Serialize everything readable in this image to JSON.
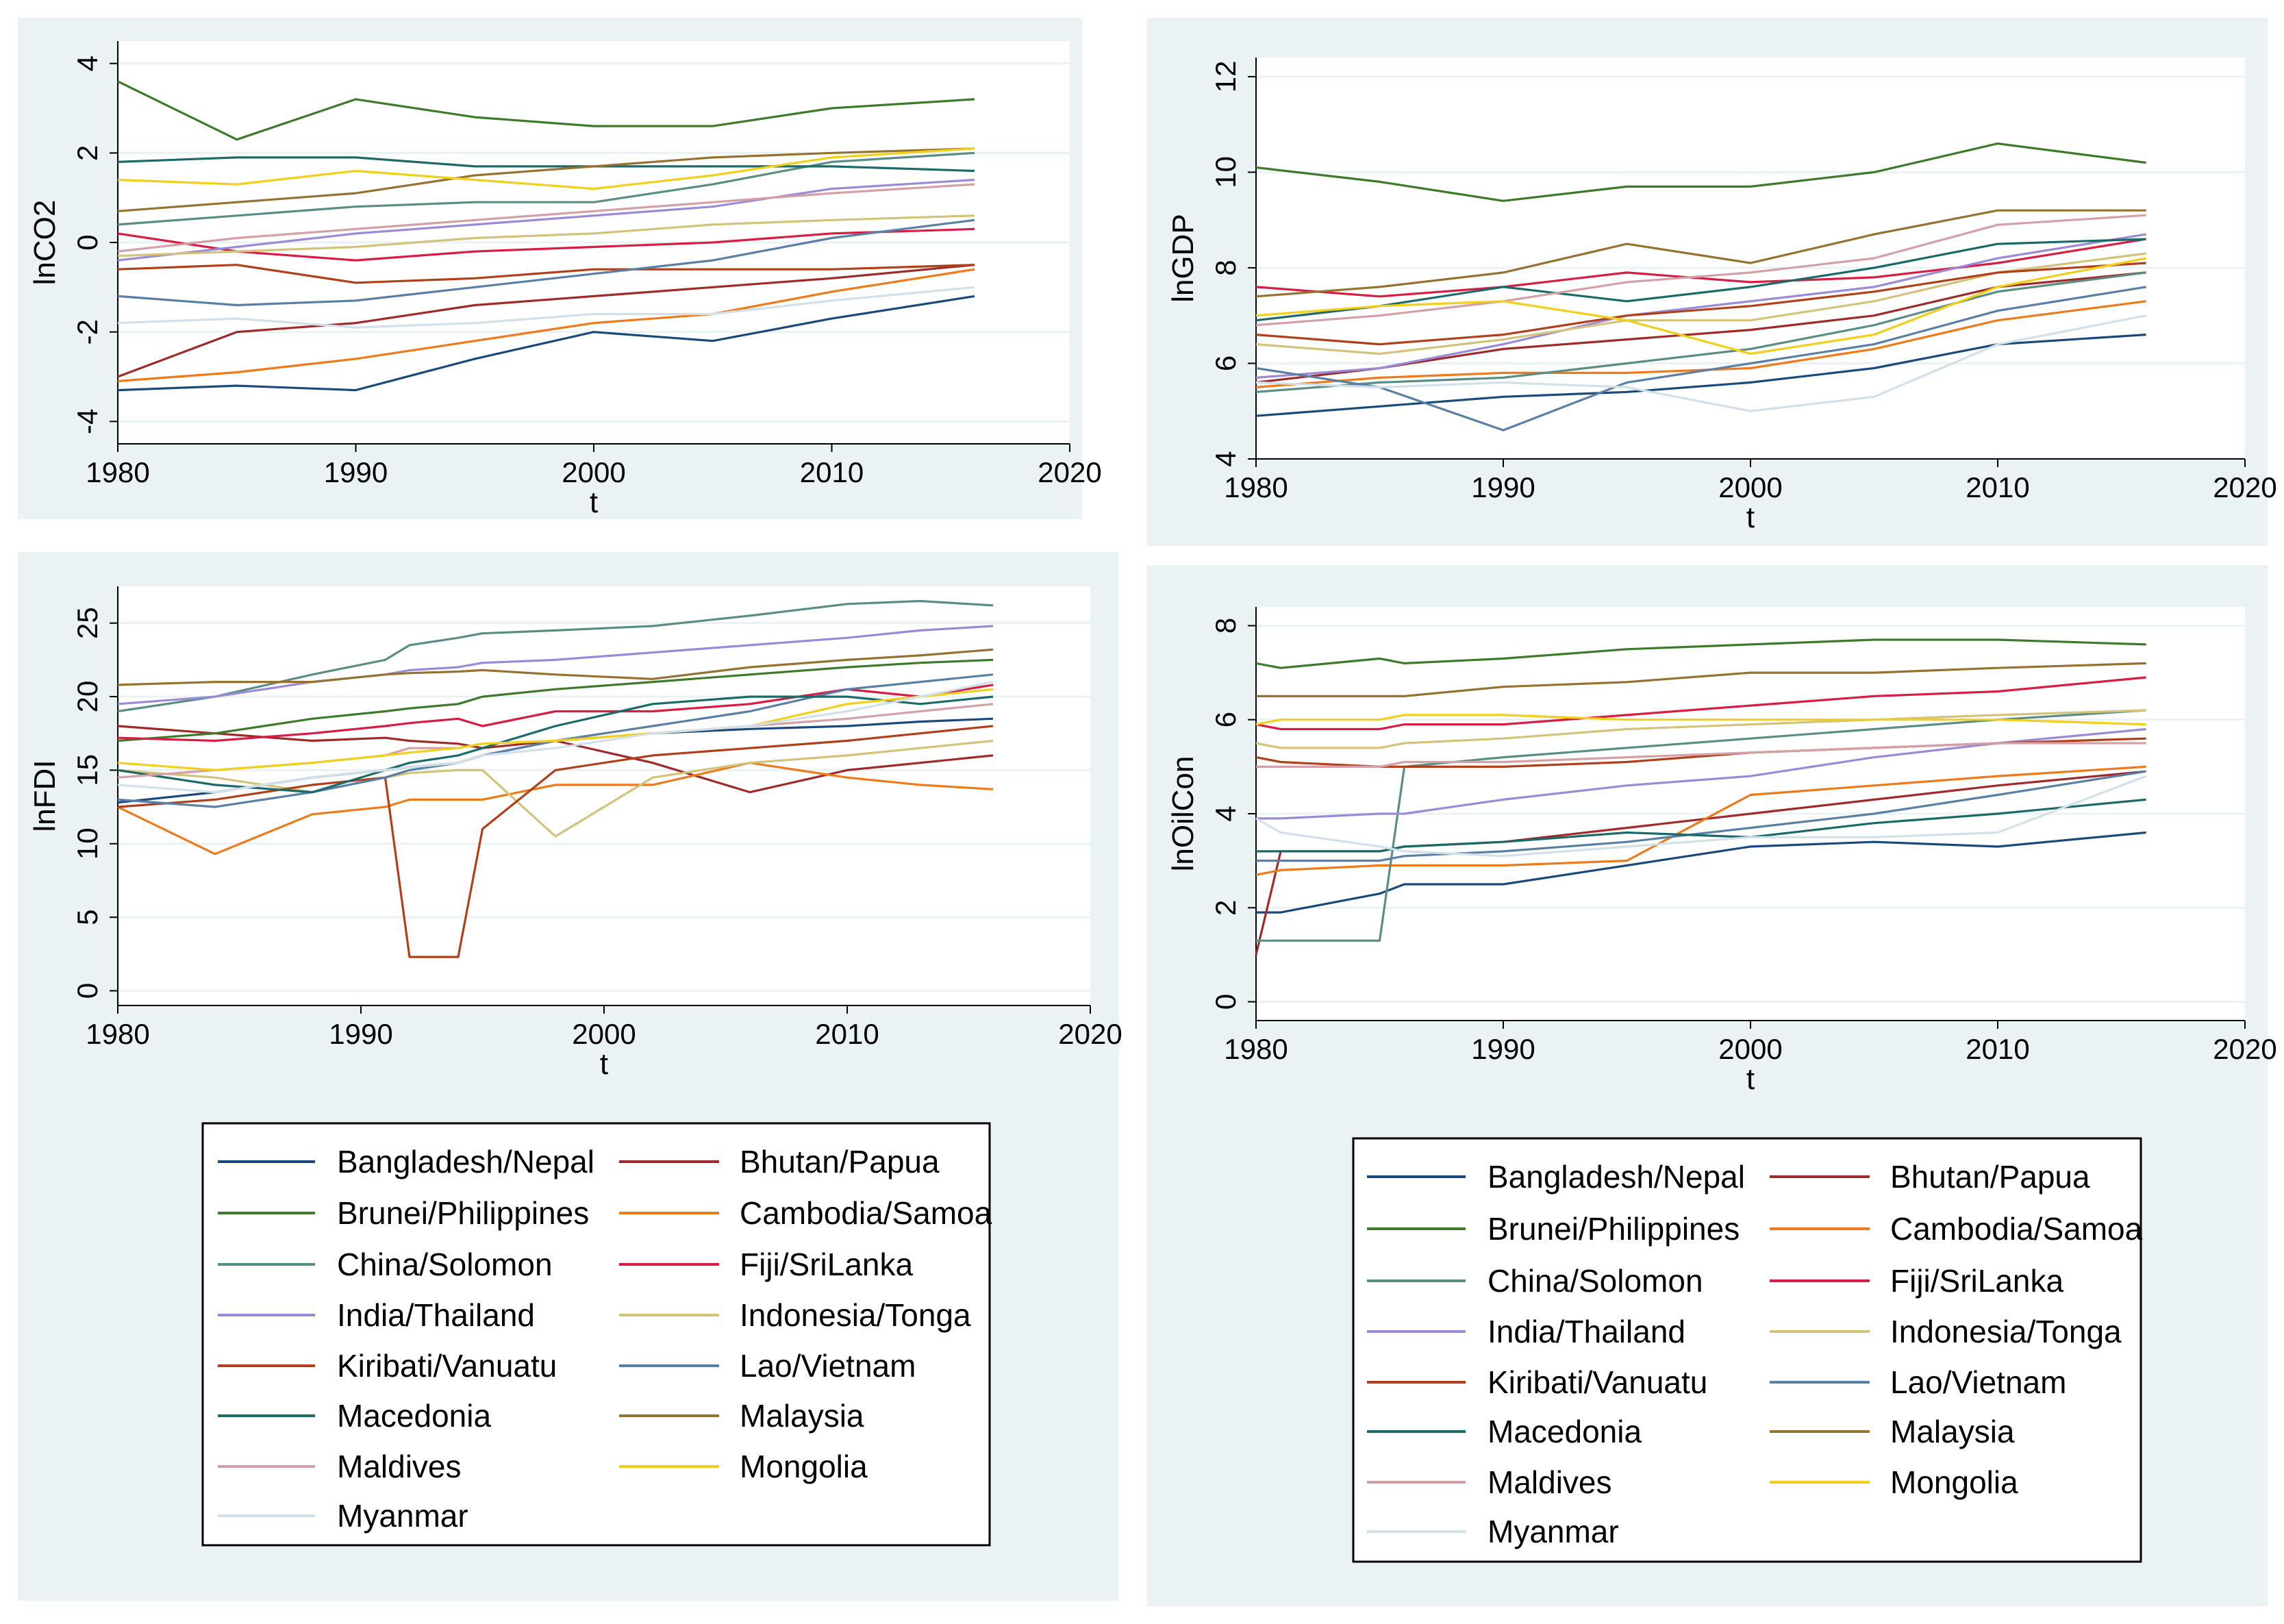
{
  "chart_data": [
    {
      "id": "co2",
      "type": "line",
      "title": "",
      "xlabel": "t",
      "ylabel": "lnCO2",
      "xlim": [
        1980,
        2020
      ],
      "ylim": [
        -4.5,
        4.5
      ],
      "xticks": [
        1980,
        1990,
        2000,
        2010,
        2020
      ],
      "yticks": [
        -4,
        -2,
        0,
        2,
        4
      ],
      "x": [
        1980,
        1985,
        1990,
        1995,
        2000,
        2005,
        2010,
        2016
      ],
      "series": [
        {
          "name": "Bangladesh/Nepal",
          "values": [
            -3.3,
            -3.2,
            -3.3,
            -2.6,
            -2.0,
            -2.2,
            -1.7,
            -1.2
          ]
        },
        {
          "name": "Bhutan/Papua",
          "values": [
            -3.0,
            -2.0,
            -1.8,
            -1.4,
            -1.2,
            -1.0,
            -0.8,
            -0.5
          ]
        },
        {
          "name": "Brunei/Philippines",
          "values": [
            3.6,
            2.3,
            3.2,
            2.8,
            2.6,
            2.6,
            3.0,
            3.2
          ]
        },
        {
          "name": "Cambodia/Samoa",
          "values": [
            -3.1,
            -2.9,
            -2.6,
            -2.2,
            -1.8,
            -1.6,
            -1.1,
            -0.6
          ]
        },
        {
          "name": "China/Solomon",
          "values": [
            0.4,
            0.6,
            0.8,
            0.9,
            0.9,
            1.3,
            1.8,
            2.0
          ]
        },
        {
          "name": "Fiji/SriLanka",
          "values": [
            0.2,
            -0.2,
            -0.4,
            -0.2,
            -0.1,
            0.0,
            0.2,
            0.3
          ]
        },
        {
          "name": "India/Thailand",
          "values": [
            -0.4,
            -0.1,
            0.2,
            0.4,
            0.6,
            0.8,
            1.2,
            1.4
          ]
        },
        {
          "name": "Indonesia/Tonga",
          "values": [
            -0.3,
            -0.2,
            -0.1,
            0.1,
            0.2,
            0.4,
            0.5,
            0.6
          ]
        },
        {
          "name": "Kiribati/Vanuatu",
          "values": [
            -0.6,
            -0.5,
            -0.9,
            -0.8,
            -0.6,
            -0.6,
            -0.6,
            -0.5
          ]
        },
        {
          "name": "Lao/Vietnam",
          "values": [
            -1.2,
            -1.4,
            -1.3,
            -1.0,
            -0.7,
            -0.4,
            0.1,
            0.5
          ]
        },
        {
          "name": "Macedonia",
          "values": [
            1.8,
            1.9,
            1.9,
            1.7,
            1.7,
            1.7,
            1.7,
            1.6
          ]
        },
        {
          "name": "Malaysia",
          "values": [
            0.7,
            0.9,
            1.1,
            1.5,
            1.7,
            1.9,
            2.0,
            2.1
          ]
        },
        {
          "name": "Maldives",
          "values": [
            -0.2,
            0.1,
            0.3,
            0.5,
            0.7,
            0.9,
            1.1,
            1.3
          ]
        },
        {
          "name": "Mongolia",
          "values": [
            1.4,
            1.3,
            1.6,
            1.4,
            1.2,
            1.5,
            1.9,
            2.1
          ]
        },
        {
          "name": "Myanmar",
          "values": [
            -1.8,
            -1.7,
            -1.9,
            -1.8,
            -1.6,
            -1.6,
            -1.3,
            -1.0
          ]
        }
      ]
    },
    {
      "id": "gdp",
      "type": "line",
      "title": "",
      "xlabel": "t",
      "ylabel": "lnGDP",
      "xlim": [
        1980,
        2020
      ],
      "ylim": [
        4,
        12.4
      ],
      "xticks": [
        1980,
        1990,
        2000,
        2010,
        2020
      ],
      "yticks": [
        4,
        6,
        8,
        10,
        12
      ],
      "x": [
        1980,
        1985,
        1990,
        1995,
        2000,
        2005,
        2010,
        2016
      ],
      "series": [
        {
          "name": "Bangladesh/Nepal",
          "values": [
            4.9,
            5.1,
            5.3,
            5.4,
            5.6,
            5.9,
            6.4,
            6.6
          ]
        },
        {
          "name": "Bhutan/Papua",
          "values": [
            5.6,
            5.9,
            6.3,
            6.5,
            6.7,
            7.0,
            7.6,
            7.9
          ]
        },
        {
          "name": "Brunei/Philippines",
          "values": [
            10.1,
            9.8,
            9.4,
            9.7,
            9.7,
            10.0,
            10.6,
            10.2
          ]
        },
        {
          "name": "Cambodia/Samoa",
          "values": [
            5.5,
            5.7,
            5.8,
            5.8,
            5.9,
            6.3,
            6.9,
            7.3
          ]
        },
        {
          "name": "China/Solomon",
          "values": [
            5.4,
            5.6,
            5.7,
            6.0,
            6.3,
            6.8,
            7.5,
            7.9
          ]
        },
        {
          "name": "Fiji/SriLanka",
          "values": [
            7.6,
            7.4,
            7.6,
            7.9,
            7.7,
            7.8,
            8.1,
            8.6
          ]
        },
        {
          "name": "India/Thailand",
          "values": [
            5.7,
            5.9,
            6.4,
            7.0,
            7.3,
            7.6,
            8.2,
            8.7
          ]
        },
        {
          "name": "Indonesia/Tonga",
          "values": [
            6.4,
            6.2,
            6.5,
            6.9,
            6.9,
            7.3,
            7.9,
            8.3
          ]
        },
        {
          "name": "Kiribati/Vanuatu",
          "values": [
            6.6,
            6.4,
            6.6,
            7.0,
            7.2,
            7.5,
            7.9,
            8.1
          ]
        },
        {
          "name": "Lao/Vietnam",
          "values": [
            5.9,
            5.5,
            4.6,
            5.6,
            6.0,
            6.4,
            7.1,
            7.6
          ]
        },
        {
          "name": "Macedonia",
          "values": [
            6.9,
            7.2,
            7.6,
            7.3,
            7.6,
            8.0,
            8.5,
            8.6
          ]
        },
        {
          "name": "Malaysia",
          "values": [
            7.4,
            7.6,
            7.9,
            8.5,
            8.1,
            8.7,
            9.2,
            9.2
          ]
        },
        {
          "name": "Maldives",
          "values": [
            6.8,
            7.0,
            7.3,
            7.7,
            7.9,
            8.2,
            8.9,
            9.1
          ]
        },
        {
          "name": "Mongolia",
          "values": [
            7.0,
            7.2,
            7.3,
            6.9,
            6.2,
            6.6,
            7.6,
            8.2
          ]
        },
        {
          "name": "Myanmar",
          "values": [
            5.6,
            5.5,
            5.6,
            5.5,
            5.0,
            5.3,
            6.4,
            7.0
          ]
        }
      ]
    },
    {
      "id": "fdi",
      "type": "line",
      "title": "",
      "xlabel": "t",
      "ylabel": "lnFDI",
      "xlim": [
        1980,
        2020
      ],
      "ylim": [
        -1,
        27.5
      ],
      "xticks": [
        1980,
        1990,
        2000,
        2010,
        2020
      ],
      "yticks": [
        0,
        5,
        10,
        15,
        20,
        25
      ],
      "x": [
        1980,
        1984,
        1988,
        1991,
        1992,
        1994,
        1995,
        1998,
        2002,
        2006,
        2010,
        2013,
        2016
      ],
      "series": [
        {
          "name": "Bangladesh/Nepal",
          "values": [
            12.8,
            13.5,
            14.5,
            15.0,
            15.2,
            15.5,
            16.0,
            17.0,
            17.5,
            17.8,
            18.0,
            18.3,
            18.5
          ]
        },
        {
          "name": "Bhutan/Papua",
          "values": [
            18.0,
            17.5,
            17.0,
            17.2,
            17.0,
            16.8,
            16.5,
            17.0,
            15.5,
            13.5,
            15.0,
            15.5,
            16.0
          ]
        },
        {
          "name": "Brunei/Philippines",
          "values": [
            17.0,
            17.5,
            18.5,
            19.0,
            19.2,
            19.5,
            20.0,
            20.5,
            21.0,
            21.5,
            22.0,
            22.3,
            22.5
          ]
        },
        {
          "name": "Cambodia/Samoa",
          "values": [
            12.5,
            9.3,
            12.0,
            12.5,
            13.0,
            13.0,
            13.0,
            14.0,
            14.0,
            15.5,
            14.5,
            14.0,
            13.7
          ]
        },
        {
          "name": "China/Solomon",
          "values": [
            19.0,
            20.0,
            21.5,
            22.5,
            23.5,
            24.0,
            24.3,
            24.5,
            24.8,
            25.5,
            26.3,
            26.5,
            26.2
          ]
        },
        {
          "name": "Fiji/SriLanka",
          "values": [
            17.2,
            17.0,
            17.5,
            18.0,
            18.2,
            18.5,
            18.0,
            19.0,
            19.0,
            19.5,
            20.5,
            20.0,
            20.8
          ]
        },
        {
          "name": "India/Thailand",
          "values": [
            19.5,
            20.0,
            21.0,
            21.5,
            21.8,
            22.0,
            22.3,
            22.5,
            23.0,
            23.5,
            24.0,
            24.5,
            24.8
          ]
        },
        {
          "name": "Indonesia/Tonga",
          "values": [
            15.0,
            14.5,
            13.5,
            14.5,
            14.8,
            15.0,
            15.0,
            10.5,
            14.5,
            15.5,
            16.0,
            16.5,
            17.0
          ]
        },
        {
          "name": "Kiribati/Vanuatu",
          "values": [
            12.5,
            13.0,
            14.0,
            14.5,
            2.3,
            2.3,
            11.0,
            15.0,
            16.0,
            16.5,
            17.0,
            17.5,
            18.0
          ]
        },
        {
          "name": "Lao/Vietnam",
          "values": [
            13.0,
            12.5,
            13.5,
            14.5,
            15.0,
            15.5,
            16.0,
            17.0,
            18.0,
            19.0,
            20.5,
            21.0,
            21.5
          ]
        },
        {
          "name": "Macedonia",
          "values": [
            15.0,
            14.0,
            13.5,
            15.0,
            15.5,
            16.0,
            16.5,
            18.0,
            19.5,
            20.0,
            20.0,
            19.5,
            20.0
          ]
        },
        {
          "name": "Malaysia",
          "values": [
            20.8,
            21.0,
            21.0,
            21.5,
            21.6,
            21.7,
            21.8,
            21.5,
            21.2,
            22.0,
            22.5,
            22.8,
            23.2
          ]
        },
        {
          "name": "Maldives",
          "values": [
            14.5,
            15.0,
            15.5,
            16.0,
            16.5,
            16.5,
            16.8,
            17.0,
            17.5,
            18.0,
            18.5,
            19.0,
            19.5
          ]
        },
        {
          "name": "Mongolia",
          "values": [
            15.5,
            15.0,
            15.5,
            16.0,
            16.2,
            16.5,
            16.8,
            17.0,
            17.5,
            18.0,
            19.5,
            20.0,
            20.5
          ]
        },
        {
          "name": "Myanmar",
          "values": [
            14.0,
            13.5,
            14.5,
            15.0,
            15.2,
            15.5,
            16.0,
            16.5,
            17.5,
            18.0,
            19.0,
            20.0,
            21.0
          ]
        }
      ]
    },
    {
      "id": "oilcon",
      "type": "line",
      "title": "",
      "xlabel": "t",
      "ylabel": "lnOilCon",
      "xlim": [
        1980,
        2020
      ],
      "ylim": [
        -0.4,
        8.4
      ],
      "xticks": [
        1980,
        1990,
        2000,
        2010,
        2020
      ],
      "yticks": [
        0,
        2,
        4,
        6,
        8
      ],
      "x": [
        1980,
        1981,
        1985,
        1986,
        1990,
        1995,
        2000,
        2005,
        2010,
        2016
      ],
      "series": [
        {
          "name": "Bangladesh/Nepal",
          "values": [
            1.9,
            1.9,
            2.3,
            2.5,
            2.5,
            2.9,
            3.3,
            3.4,
            3.3,
            3.6
          ]
        },
        {
          "name": "Bhutan/Papua",
          "values": [
            1.0,
            3.2,
            3.2,
            3.3,
            3.4,
            3.7,
            4.0,
            4.3,
            4.6,
            4.9
          ]
        },
        {
          "name": "Brunei/Philippines",
          "values": [
            7.2,
            7.1,
            7.3,
            7.2,
            7.3,
            7.5,
            7.6,
            7.7,
            7.7,
            7.6
          ]
        },
        {
          "name": "Cambodia/Samoa",
          "values": [
            2.7,
            2.8,
            2.9,
            2.9,
            2.9,
            3.0,
            4.4,
            4.6,
            4.8,
            5.0
          ]
        },
        {
          "name": "China/Solomon",
          "values": [
            1.3,
            1.3,
            1.3,
            5.0,
            5.2,
            5.4,
            5.6,
            5.8,
            6.0,
            6.2
          ]
        },
        {
          "name": "Fiji/SriLanka",
          "values": [
            5.9,
            5.8,
            5.8,
            5.9,
            5.9,
            6.1,
            6.3,
            6.5,
            6.6,
            6.9
          ]
        },
        {
          "name": "India/Thailand",
          "values": [
            3.9,
            3.9,
            4.0,
            4.0,
            4.3,
            4.6,
            4.8,
            5.2,
            5.5,
            5.8
          ]
        },
        {
          "name": "Indonesia/Tonga",
          "values": [
            5.5,
            5.4,
            5.4,
            5.5,
            5.6,
            5.8,
            5.9,
            6.0,
            6.1,
            6.2
          ]
        },
        {
          "name": "Kiribati/Vanuatu",
          "values": [
            5.2,
            5.1,
            5.0,
            5.0,
            5.0,
            5.1,
            5.3,
            5.4,
            5.5,
            5.6
          ]
        },
        {
          "name": "Lao/Vietnam",
          "values": [
            3.0,
            3.0,
            3.0,
            3.1,
            3.2,
            3.4,
            3.7,
            4.0,
            4.4,
            4.9
          ]
        },
        {
          "name": "Macedonia",
          "values": [
            3.2,
            3.2,
            3.2,
            3.3,
            3.4,
            3.6,
            3.5,
            3.8,
            4.0,
            4.3
          ]
        },
        {
          "name": "Malaysia",
          "values": [
            6.5,
            6.5,
            6.5,
            6.5,
            6.7,
            6.8,
            7.0,
            7.0,
            7.1,
            7.2
          ]
        },
        {
          "name": "Maldives",
          "values": [
            5.0,
            5.0,
            5.0,
            5.1,
            5.1,
            5.2,
            5.3,
            5.4,
            5.5,
            5.5
          ]
        },
        {
          "name": "Mongolia",
          "values": [
            5.9,
            6.0,
            6.0,
            6.1,
            6.1,
            6.0,
            6.0,
            6.0,
            6.0,
            5.9
          ]
        },
        {
          "name": "Myanmar",
          "values": [
            3.9,
            3.6,
            3.3,
            3.2,
            3.1,
            3.3,
            3.5,
            3.5,
            3.6,
            4.8
          ]
        }
      ]
    }
  ],
  "legend": {
    "entries": [
      {
        "name": "Bangladesh/Nepal",
        "color": "#1a4a7c"
      },
      {
        "name": "Bhutan/Papua",
        "color": "#a02a2a"
      },
      {
        "name": "Brunei/Philippines",
        "color": "#3d7a2a"
      },
      {
        "name": "Cambodia/Samoa",
        "color": "#ef7a1a"
      },
      {
        "name": "China/Solomon",
        "color": "#5a8e84"
      },
      {
        "name": "Fiji/SriLanka",
        "color": "#d81c44"
      },
      {
        "name": "India/Thailand",
        "color": "#9a8ad8"
      },
      {
        "name": "Indonesia/Tonga",
        "color": "#d4c27a"
      },
      {
        "name": "Kiribati/Vanuatu",
        "color": "#b0401a"
      },
      {
        "name": "Lao/Vietnam",
        "color": "#5a7fa6"
      },
      {
        "name": "Macedonia",
        "color": "#1a6a6a"
      },
      {
        "name": "Malaysia",
        "color": "#967230"
      },
      {
        "name": "Maldives",
        "color": "#d4a0a6"
      },
      {
        "name": "Mongolia",
        "color": "#f2d01a"
      },
      {
        "name": "Myanmar",
        "color": "#d2e0ea"
      }
    ]
  }
}
